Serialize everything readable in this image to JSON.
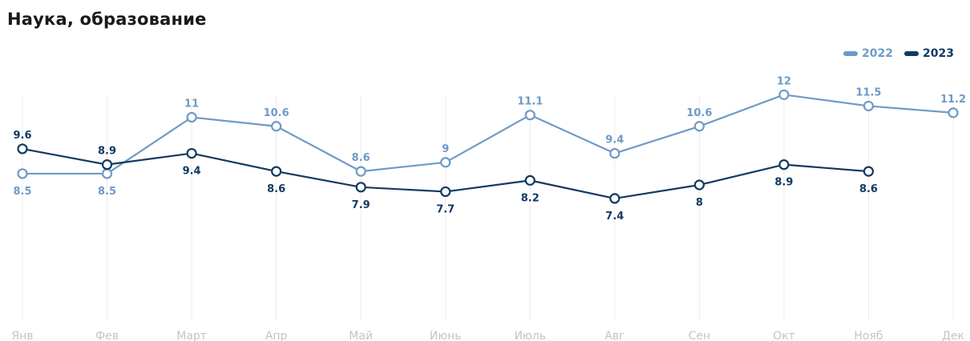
{
  "chart_data": {
    "type": "line",
    "title": "Наука, образование",
    "categories": [
      "Янв",
      "Фев",
      "Март",
      "Апр",
      "Май",
      "Июнь",
      "Июль",
      "Авг",
      "Сен",
      "Окт",
      "Нояб",
      "Дек"
    ],
    "series": [
      {
        "name": "2022",
        "color": "#6f9ac6",
        "values": [
          8.5,
          8.5,
          11,
          10.6,
          8.6,
          9,
          11.1,
          9.4,
          10.6,
          12,
          11.5,
          11.2
        ],
        "labels": [
          "8.5",
          "8.5",
          "11",
          "10.6",
          "8.6",
          "9",
          "11.1",
          "9.4",
          "10.6",
          "12",
          "11.5",
          "11.2"
        ],
        "label_position": [
          "below",
          "below",
          "above",
          "above",
          "above",
          "above",
          "above",
          "above",
          "above",
          "above",
          "above",
          "above"
        ]
      },
      {
        "name": "2023",
        "color": "#123a61",
        "values": [
          9.6,
          8.9,
          9.4,
          8.6,
          7.9,
          7.7,
          8.2,
          7.4,
          8,
          8.9,
          8.6,
          null
        ],
        "labels": [
          "9.6",
          "8.9",
          "9.4",
          "8.6",
          "7.9",
          "7.7",
          "8.2",
          "7.4",
          "8",
          "8.9",
          "8.6",
          ""
        ],
        "label_position": [
          "above",
          "above",
          "below",
          "below",
          "below",
          "below",
          "below",
          "below",
          "below",
          "below",
          "below",
          "below"
        ]
      }
    ],
    "ylim": [
      2,
      14
    ],
    "grid": "vertical",
    "legend_position": "top-right",
    "xlabel": "",
    "ylabel": ""
  }
}
